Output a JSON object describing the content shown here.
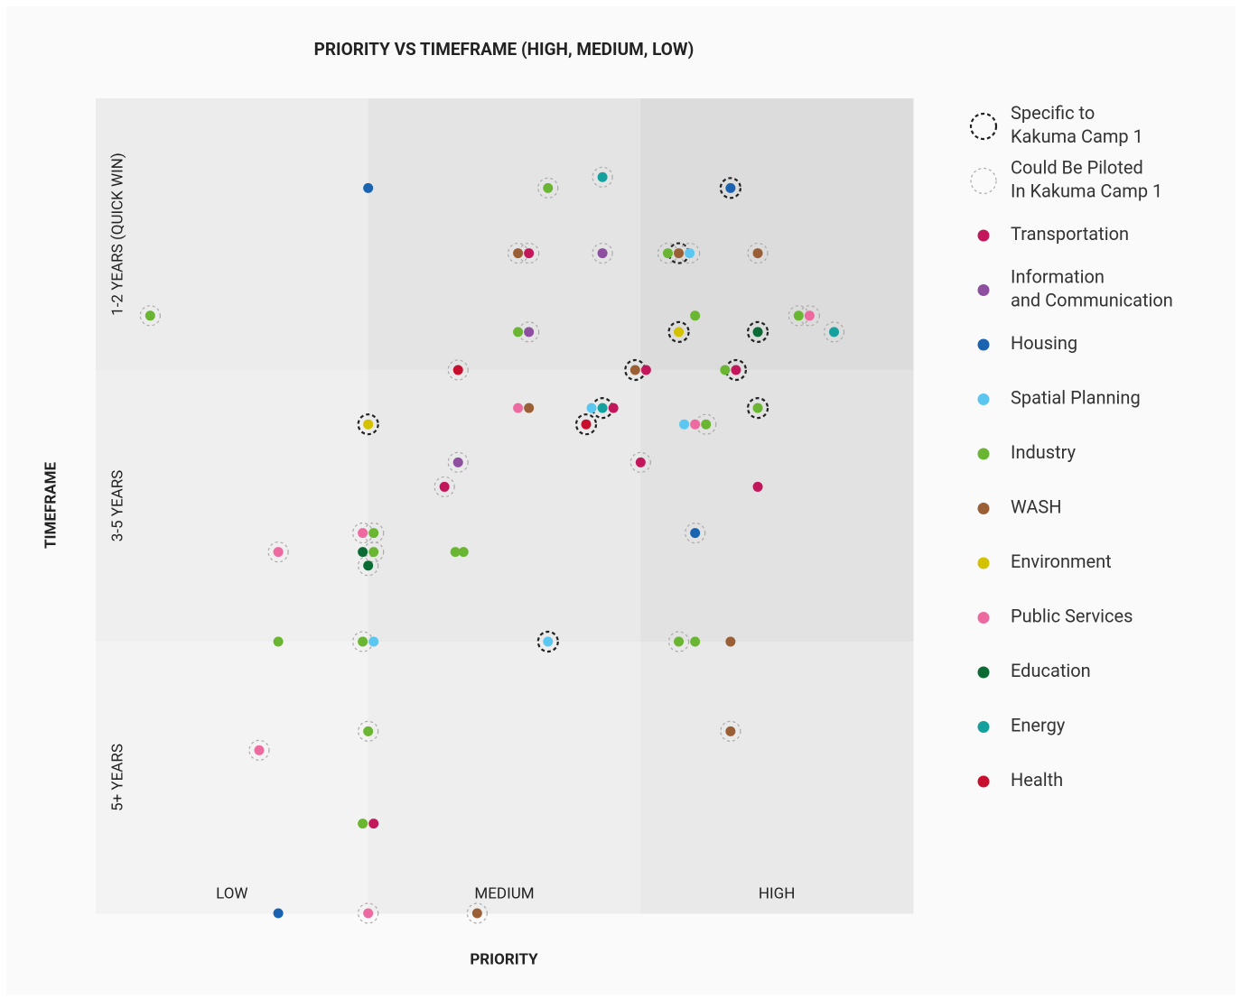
{
  "chart_data": {
    "type": "scatter",
    "title": "PRIORITY VS TIMEFRAME (HIGH, MEDIUM, LOW)",
    "x_label": "PRIORITY",
    "y_label": "TIMEFRAME",
    "xlim": [
      0,
      3
    ],
    "ylim": [
      3,
      0
    ],
    "xticks": [
      {
        "value": 0.5,
        "label": "LOW"
      },
      {
        "value": 1.5,
        "label": "MEDIUM"
      },
      {
        "value": 2.5,
        "label": "HIGH"
      }
    ],
    "yticks": [
      {
        "value": 0.5,
        "label": "1-2 YEARS (QUICK WIN)"
      },
      {
        "value": 1.5,
        "label": "3-5 YEARS"
      },
      {
        "value": 2.5,
        "label": "5+ YEARS"
      }
    ],
    "rings": [
      {
        "name": "Specific to\nKakuma Camp 1",
        "color": "#222222",
        "x": [
          2.33,
          2.14,
          2.14,
          2.43,
          1.98,
          2.35,
          1.86,
          1.8,
          1.0,
          2.43,
          1.66
        ],
        "y": [
          0.33,
          0.57,
          0.86,
          0.86,
          1.0,
          1.0,
          1.14,
          1.2,
          1.2,
          1.14,
          2.0
        ]
      },
      {
        "name": "Could Be Piloted\nIn Kakuma Camp 1",
        "color": "#aaaaaa",
        "x": [
          1.66,
          1.86,
          1.55,
          1.59,
          1.86,
          2.1,
          2.18,
          2.43,
          0.2,
          1.59,
          2.58,
          2.62,
          2.71,
          1.33,
          2.24,
          1.33,
          2.0,
          1.28,
          0.98,
          1.02,
          2.2,
          0.67,
          1.02,
          1.0,
          0.98,
          2.14,
          1.0,
          2.33,
          0.6,
          1.0,
          1.4
        ],
        "y": [
          0.33,
          0.29,
          0.57,
          0.57,
          0.57,
          0.57,
          0.57,
          0.57,
          0.8,
          0.86,
          0.8,
          0.8,
          0.86,
          1.0,
          1.2,
          1.34,
          1.34,
          1.43,
          1.6,
          1.6,
          1.6,
          1.67,
          1.67,
          1.72,
          2.0,
          2.0,
          2.33,
          2.33,
          2.4,
          3.0,
          3.0
        ]
      }
    ],
    "series": [
      {
        "name": "Transportation",
        "color": "#c2185b",
        "x": [
          1.59,
          2.02,
          2.35,
          1.9,
          2.0,
          1.28,
          2.43,
          1.02
        ],
        "y": [
          0.57,
          1.0,
          1.0,
          1.14,
          1.34,
          1.43,
          1.43,
          2.67
        ]
      },
      {
        "name": "Information\nand Communication",
        "color": "#8e4fa0",
        "x": [
          1.86,
          1.59,
          1.33
        ],
        "y": [
          0.57,
          0.86,
          1.34
        ]
      },
      {
        "name": "Housing",
        "color": "#1a63b0",
        "x": [
          1.0,
          2.33,
          2.2,
          0.67
        ],
        "y": [
          0.33,
          0.33,
          1.6,
          3.0
        ]
      },
      {
        "name": "Spatial Planning",
        "color": "#5bc6f0",
        "x": [
          2.18,
          1.82,
          2.16,
          1.02,
          1.66
        ],
        "y": [
          0.57,
          1.14,
          1.2,
          2.0,
          2.0
        ]
      },
      {
        "name": "Industry",
        "color": "#6ab633",
        "x": [
          1.66,
          2.1,
          0.2,
          1.55,
          2.2,
          2.58,
          2.31,
          2.43,
          2.24,
          1.02,
          1.02,
          1.32,
          1.35,
          0.67,
          0.98,
          2.14,
          2.2,
          1.0,
          0.98
        ],
        "y": [
          0.33,
          0.57,
          0.8,
          0.86,
          0.8,
          0.8,
          1.0,
          1.14,
          1.2,
          1.6,
          1.67,
          1.67,
          1.67,
          2.0,
          2.0,
          2.0,
          2.0,
          2.33,
          2.67
        ]
      },
      {
        "name": "WASH",
        "color": "#9a5f35",
        "x": [
          1.55,
          2.14,
          2.43,
          1.98,
          1.59,
          2.33,
          2.33,
          1.4
        ],
        "y": [
          0.57,
          0.57,
          0.57,
          1.0,
          1.14,
          2.0,
          2.33,
          3.0
        ]
      },
      {
        "name": "Environment",
        "color": "#d4c100",
        "x": [
          2.14,
          1.0
        ],
        "y": [
          0.86,
          1.2
        ]
      },
      {
        "name": "Public Services",
        "color": "#ec6aa0",
        "x": [
          2.62,
          1.55,
          2.2,
          0.98,
          0.67,
          0.6,
          1.0
        ],
        "y": [
          0.8,
          1.14,
          1.2,
          1.6,
          1.67,
          2.4,
          3.0
        ]
      },
      {
        "name": "Education",
        "color": "#0b6b35",
        "x": [
          2.43,
          0.98,
          1.0
        ],
        "y": [
          0.86,
          1.67,
          1.72
        ]
      },
      {
        "name": "Energy",
        "color": "#14a09d",
        "x": [
          1.86,
          2.71,
          1.86
        ],
        "y": [
          0.29,
          0.86,
          1.14
        ]
      },
      {
        "name": "Health",
        "color": "#c8102e",
        "x": [
          1.33,
          1.8
        ],
        "y": [
          1.0,
          1.2
        ]
      }
    ]
  }
}
